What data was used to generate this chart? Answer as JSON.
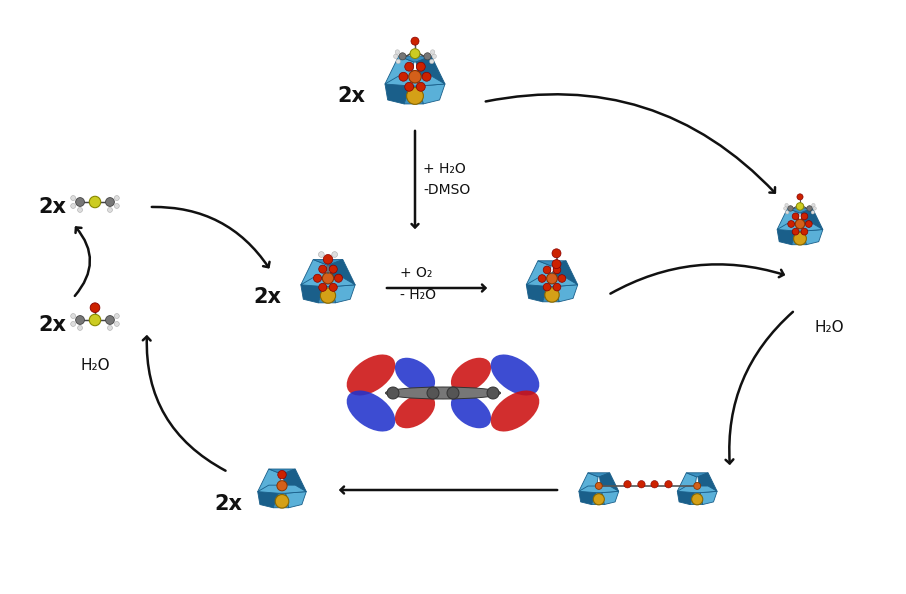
{
  "bg_color": "#ffffff",
  "arrow_color": "#111111",
  "text_color": "#111111",
  "pom_blue": "#3a8fbf",
  "pom_dark": "#1a5f8a",
  "pom_light": "#5ab0d8",
  "pom_yellow": "#d4a017",
  "ru_orange": "#d4601a",
  "atom_red": "#cc2200",
  "atom_gray": "#777777",
  "atom_white": "#dddddd",
  "atom_sulfur": "#cccc22",
  "orbital_red": "#cc1111",
  "orbital_blue": "#2233cc",
  "labels": {
    "2x": "2x",
    "water_add": "+ H₂O",
    "dmso_remove": "-DMSO",
    "o2_add": "+ O₂",
    "water_remove": "- H₂O",
    "h2o": "H₂O"
  }
}
